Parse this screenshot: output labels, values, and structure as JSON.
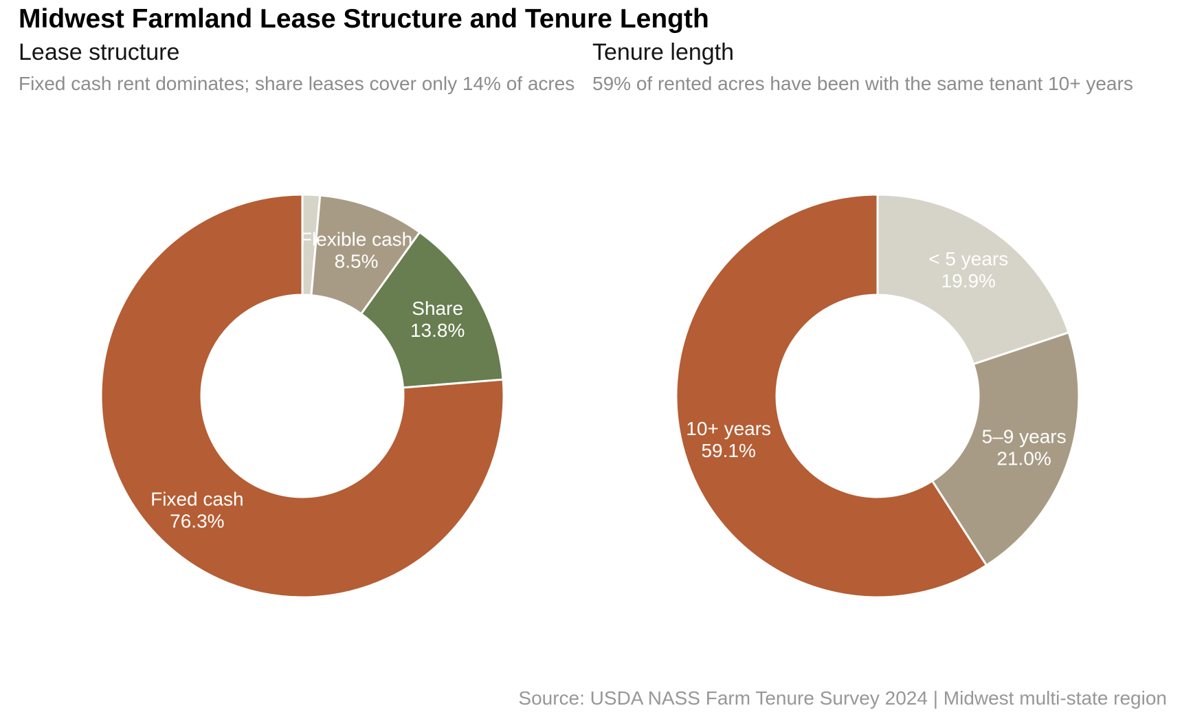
{
  "title": "Midwest Farmland Lease Structure and Tenure Length",
  "panels": [
    {
      "heading": "Lease structure",
      "caption": "Fixed cash rent dominates; share leases cover only 14% of acres"
    },
    {
      "heading": "Tenure length",
      "caption": "59% of rented acres have been with the same tenant 10+ years"
    }
  ],
  "source": "Source: USDA NASS Farm Tenure Survey 2024 | Midwest multi-state region",
  "colors": {
    "rust": "#B55D34",
    "green": "#687D50",
    "taupe": "#A89B85",
    "light_gray": "#D6D3C8",
    "slice_divider": "#FFFFFF",
    "slice_label_text": "#FFFFFF",
    "caption_gray": "#8C8C8C",
    "source_gray": "#979797",
    "title_black": "#000000"
  },
  "chart_data": [
    {
      "type": "pie",
      "variant": "donut",
      "title": "Lease structure",
      "start": "top",
      "direction": "clockwise",
      "slices": [
        {
          "label": "",
          "pct_text": "",
          "value": 1.4,
          "color": "#D6D3C8",
          "show_label": false
        },
        {
          "label": "Flexible cash",
          "pct_text": "8.5%",
          "value": 8.5,
          "color": "#A89B85",
          "show_label": true
        },
        {
          "label": "Share",
          "pct_text": "13.8%",
          "value": 13.8,
          "color": "#687D50",
          "show_label": true
        },
        {
          "label": "Fixed cash",
          "pct_text": "76.3%",
          "value": 76.3,
          "color": "#B55D34",
          "show_label": true
        }
      ]
    },
    {
      "type": "pie",
      "variant": "donut",
      "title": "Tenure length",
      "start": "top",
      "direction": "clockwise",
      "slices": [
        {
          "label": "< 5 years",
          "pct_text": "19.9%",
          "value": 19.9,
          "color": "#D6D3C8",
          "show_label": true
        },
        {
          "label": "5–9 years",
          "pct_text": "21.0%",
          "value": 21.0,
          "color": "#A89B85",
          "show_label": true
        },
        {
          "label": "10+ years",
          "pct_text": "59.1%",
          "value": 59.1,
          "color": "#B55D34",
          "show_label": true
        }
      ]
    }
  ]
}
